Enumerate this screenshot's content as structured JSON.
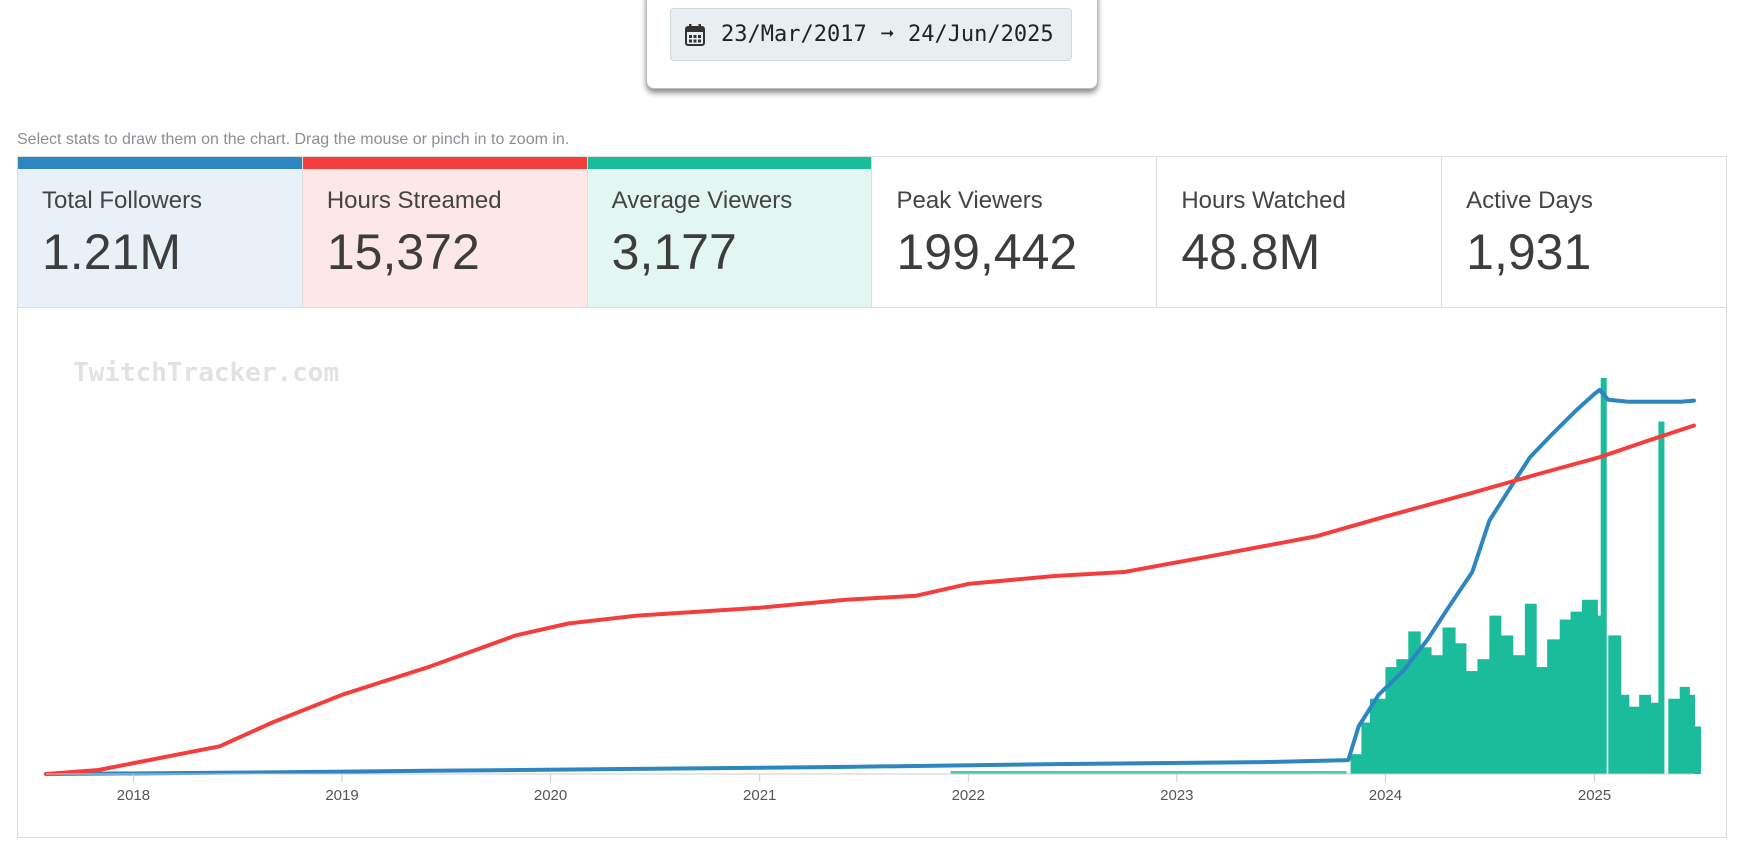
{
  "date_range": {
    "start": "23/Mar/2017",
    "arrow": "➞",
    "end": "24/Jun/2025"
  },
  "hint": "Select stats to draw them on the chart. Drag the mouse or pinch in to zoom in.",
  "stats": [
    {
      "label": "Total Followers",
      "value": "1.21M",
      "color": "#2e86c1",
      "bg": "#e8f1f8",
      "selected": true
    },
    {
      "label": "Hours Streamed",
      "value": "15,372",
      "color": "#f43e3e",
      "bg": "#fee7e7",
      "selected": true
    },
    {
      "label": "Average Viewers",
      "value": "3,177",
      "color": "#1abc9c",
      "bg": "#e3f7f2",
      "selected": true
    },
    {
      "label": "Peak Viewers",
      "value": "199,442",
      "color": "",
      "bg": "#ffffff",
      "selected": false
    },
    {
      "label": "Hours Watched",
      "value": "48.8M",
      "color": "",
      "bg": "#ffffff",
      "selected": false
    },
    {
      "label": "Active Days",
      "value": "1,931",
      "color": "",
      "bg": "#ffffff",
      "selected": false
    }
  ],
  "watermark": "TwitchTracker.com",
  "chart_data": {
    "type": "line",
    "x_start": "2017-08-01",
    "x_end": "2025-06-24",
    "xticks": [
      "2018",
      "2019",
      "2020",
      "2021",
      "2022",
      "2023",
      "2024",
      "2025"
    ],
    "grid": false,
    "series": [
      {
        "key": "followers",
        "type": "line",
        "color": "#2e86c1",
        "points": [
          [
            "2017-08-01",
            0
          ],
          [
            "2018-06-01",
            0.003
          ],
          [
            "2019-06-01",
            0.008
          ],
          [
            "2020-06-01",
            0.013
          ],
          [
            "2021-06-01",
            0.018
          ],
          [
            "2022-06-01",
            0.025
          ],
          [
            "2023-06-01",
            0.03
          ],
          [
            "2023-10-28",
            0.035
          ],
          [
            "2023-11-15",
            0.12
          ],
          [
            "2023-12-20",
            0.2
          ],
          [
            "2024-02-01",
            0.26
          ],
          [
            "2024-03-15",
            0.34
          ],
          [
            "2024-04-20",
            0.42
          ],
          [
            "2024-06-01",
            0.51
          ],
          [
            "2024-07-01",
            0.64
          ],
          [
            "2024-08-01",
            0.71
          ],
          [
            "2024-09-10",
            0.8
          ],
          [
            "2024-10-20",
            0.86
          ],
          [
            "2024-12-01",
            0.92
          ],
          [
            "2025-01-01",
            0.96
          ],
          [
            "2025-01-10",
            0.97
          ],
          [
            "2025-01-25",
            0.945
          ],
          [
            "2025-03-01",
            0.94
          ],
          [
            "2025-06-01",
            0.94
          ],
          [
            "2025-06-24",
            0.943
          ]
        ]
      },
      {
        "key": "hours_streamed",
        "type": "line",
        "color": "#f43e3e",
        "points": [
          [
            "2017-08-01",
            0
          ],
          [
            "2017-11-01",
            0.01
          ],
          [
            "2018-06-01",
            0.07
          ],
          [
            "2018-09-01",
            0.13
          ],
          [
            "2019-01-01",
            0.2
          ],
          [
            "2019-06-01",
            0.27
          ],
          [
            "2019-11-01",
            0.35
          ],
          [
            "2020-02-01",
            0.38
          ],
          [
            "2020-06-01",
            0.4
          ],
          [
            "2021-01-01",
            0.42
          ],
          [
            "2021-06-01",
            0.44
          ],
          [
            "2021-10-01",
            0.45
          ],
          [
            "2022-01-01",
            0.48
          ],
          [
            "2022-06-01",
            0.5
          ],
          [
            "2022-10-01",
            0.51
          ],
          [
            "2023-03-01",
            0.55
          ],
          [
            "2023-09-01",
            0.6
          ],
          [
            "2024-01-01",
            0.65
          ],
          [
            "2024-06-01",
            0.71
          ],
          [
            "2024-10-01",
            0.76
          ],
          [
            "2025-01-10",
            0.8
          ],
          [
            "2025-04-01",
            0.84
          ],
          [
            "2025-06-24",
            0.88
          ]
        ]
      },
      {
        "key": "average_viewers",
        "type": "bar",
        "color": "#1abc9c",
        "points": [
          [
            "2023-11-01",
            0.05
          ],
          [
            "2023-11-20",
            0.13
          ],
          [
            "2023-12-05",
            0.19
          ],
          [
            "2024-01-01",
            0.27
          ],
          [
            "2024-01-20",
            0.29
          ],
          [
            "2024-02-10",
            0.36
          ],
          [
            "2024-03-01",
            0.32
          ],
          [
            "2024-03-20",
            0.3
          ],
          [
            "2024-04-10",
            0.37
          ],
          [
            "2024-05-01",
            0.33
          ],
          [
            "2024-05-20",
            0.26
          ],
          [
            "2024-06-10",
            0.29
          ],
          [
            "2024-07-01",
            0.4
          ],
          [
            "2024-07-20",
            0.35
          ],
          [
            "2024-08-10",
            0.3
          ],
          [
            "2024-09-01",
            0.43
          ],
          [
            "2024-09-20",
            0.27
          ],
          [
            "2024-10-10",
            0.34
          ],
          [
            "2024-11-01",
            0.39
          ],
          [
            "2024-11-20",
            0.41
          ],
          [
            "2024-12-10",
            0.44
          ],
          [
            "2025-01-05",
            0.4
          ],
          [
            "2025-01-17",
            1.0
          ],
          [
            "2025-01-25",
            0.35
          ],
          [
            "2025-02-15",
            0.2
          ],
          [
            "2025-03-01",
            0.17
          ],
          [
            "2025-03-20",
            0.2
          ],
          [
            "2025-04-08",
            0.18
          ],
          [
            "2025-04-28",
            0.89
          ],
          [
            "2025-05-10",
            0.19
          ],
          [
            "2025-05-30",
            0.22
          ],
          [
            "2025-06-15",
            0.2
          ],
          [
            "2025-06-24",
            0.12
          ]
        ]
      }
    ]
  }
}
